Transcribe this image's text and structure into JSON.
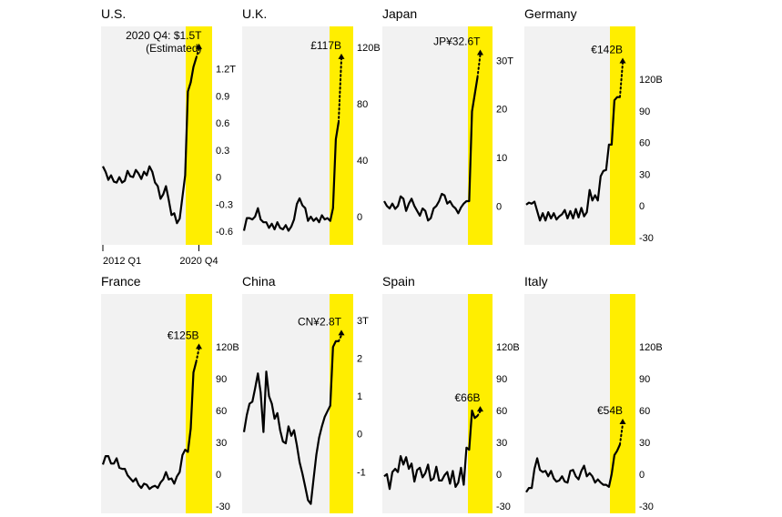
{
  "colors": {
    "panel_bg": "#f2f2f2",
    "highlight": "#ffee00",
    "line": "#000000"
  },
  "chart_data": [
    {
      "type": "line",
      "title": "U.S.",
      "x": [
        "2012 Q1",
        "2012 Q2",
        "2012 Q3",
        "2012 Q4",
        "2013 Q1",
        "2013 Q2",
        "2013 Q3",
        "2013 Q4",
        "2014 Q1",
        "2014 Q2",
        "2014 Q3",
        "2014 Q4",
        "2015 Q1",
        "2015 Q2",
        "2015 Q3",
        "2015 Q4",
        "2016 Q1",
        "2016 Q2",
        "2016 Q3",
        "2016 Q4",
        "2017 Q1",
        "2017 Q2",
        "2017 Q3",
        "2017 Q4",
        "2018 Q1",
        "2018 Q2",
        "2018 Q3",
        "2018 Q4",
        "2019 Q1",
        "2019 Q2",
        "2019 Q3",
        "2019 Q4",
        "2020 Q1",
        "2020 Q2",
        "2020 Q3"
      ],
      "values": [
        0.12,
        0.06,
        -0.03,
        0.02,
        -0.05,
        -0.06,
        0.0,
        -0.06,
        -0.04,
        0.07,
        0.01,
        0.0,
        0.08,
        0.04,
        -0.02,
        0.06,
        0.02,
        0.12,
        0.06,
        -0.06,
        -0.1,
        -0.24,
        -0.19,
        -0.1,
        -0.25,
        -0.42,
        -0.4,
        -0.51,
        -0.46,
        -0.22,
        0.02,
        0.95,
        1.05,
        1.22,
        1.32
      ],
      "estimate": {
        "label": "2020 Q4: $1.5T",
        "label2": "(Estimated)",
        "value": 1.5
      },
      "yticks": [
        "1.2T",
        "0.9",
        "0.6",
        "0.3",
        "0",
        "-0.3",
        "-0.6"
      ],
      "ytick_values": [
        1.2,
        0.9,
        0.6,
        0.3,
        0,
        -0.3,
        -0.6
      ],
      "ylim": [
        -0.75,
        1.67
      ],
      "xticks": [
        "2012 Q1",
        "2020 Q4"
      ]
    },
    {
      "type": "line",
      "title": "U.K.",
      "x": [
        "2012 Q1",
        "2012 Q2",
        "2012 Q3",
        "2012 Q4",
        "2013 Q1",
        "2013 Q2",
        "2013 Q3",
        "2013 Q4",
        "2014 Q1",
        "2014 Q2",
        "2014 Q3",
        "2014 Q4",
        "2015 Q1",
        "2015 Q2",
        "2015 Q3",
        "2015 Q4",
        "2016 Q1",
        "2016 Q2",
        "2016 Q3",
        "2016 Q4",
        "2017 Q1",
        "2017 Q2",
        "2017 Q3",
        "2017 Q4",
        "2018 Q1",
        "2018 Q2",
        "2018 Q3",
        "2018 Q4",
        "2019 Q1",
        "2019 Q2",
        "2019 Q3",
        "2019 Q4",
        "2020 Q1",
        "2020 Q2",
        "2020 Q3"
      ],
      "values": [
        -10,
        -1,
        -1,
        -2,
        0,
        6,
        -2,
        -4,
        -4,
        -8,
        -5,
        -9,
        -4,
        -8,
        -9,
        -6,
        -10,
        -7,
        -2,
        9,
        13,
        8,
        6,
        -3,
        0,
        -3,
        -1,
        -4,
        1,
        -2,
        -1,
        -3,
        6,
        55,
        67
      ],
      "estimate": {
        "label": "£117B",
        "value": 117
      },
      "yticks": [
        "120B",
        "80",
        "40",
        "0"
      ],
      "ytick_values": [
        120,
        80,
        40,
        0
      ],
      "ylim": [
        -20,
        135
      ]
    },
    {
      "type": "line",
      "title": "Japan",
      "x": [
        "2012 Q1",
        "2012 Q2",
        "2012 Q3",
        "2012 Q4",
        "2013 Q1",
        "2013 Q2",
        "2013 Q3",
        "2013 Q4",
        "2014 Q1",
        "2014 Q2",
        "2014 Q3",
        "2014 Q4",
        "2015 Q1",
        "2015 Q2",
        "2015 Q3",
        "2015 Q4",
        "2016 Q1",
        "2016 Q2",
        "2016 Q3",
        "2016 Q4",
        "2017 Q1",
        "2017 Q2",
        "2017 Q3",
        "2017 Q4",
        "2018 Q1",
        "2018 Q2",
        "2018 Q3",
        "2018 Q4",
        "2019 Q1",
        "2019 Q2",
        "2019 Q3",
        "2019 Q4",
        "2020 Q1",
        "2020 Q2",
        "2020 Q3"
      ],
      "values": [
        1,
        0,
        -0.5,
        0.5,
        -0.6,
        0,
        2,
        1.5,
        -1,
        0.5,
        1.5,
        0,
        -1,
        -2,
        -0.5,
        -1,
        -3,
        -2.5,
        -0.5,
        0,
        1,
        2.5,
        2.2,
        0.5,
        1,
        0,
        -0.5,
        -1.5,
        -0.3,
        0.5,
        1,
        1,
        19.5,
        23,
        26.5
      ],
      "estimate": {
        "label": "JP¥32.6T",
        "value": 32.6
      },
      "yticks": [
        "30T",
        "20",
        "10",
        "0"
      ],
      "ytick_values": [
        30,
        20,
        10,
        0
      ],
      "ylim": [
        -8,
        37
      ]
    },
    {
      "type": "line",
      "title": "Germany",
      "x": [
        "2012 Q1",
        "2012 Q2",
        "2012 Q3",
        "2012 Q4",
        "2013 Q1",
        "2013 Q2",
        "2013 Q3",
        "2013 Q4",
        "2014 Q1",
        "2014 Q2",
        "2014 Q3",
        "2014 Q4",
        "2015 Q1",
        "2015 Q2",
        "2015 Q3",
        "2015 Q4",
        "2016 Q1",
        "2016 Q2",
        "2016 Q3",
        "2016 Q4",
        "2017 Q1",
        "2017 Q2",
        "2017 Q3",
        "2017 Q4",
        "2018 Q1",
        "2018 Q2",
        "2018 Q3",
        "2018 Q4",
        "2019 Q1",
        "2019 Q2",
        "2019 Q3",
        "2019 Q4",
        "2020 Q1",
        "2020 Q2",
        "2020 Q3"
      ],
      "values": [
        1,
        3,
        2,
        4,
        -5,
        -14,
        -7,
        -14,
        -6,
        -12,
        -7,
        -13,
        -10,
        -8,
        -4,
        -12,
        -5,
        -12,
        -3,
        -11,
        -2,
        -10,
        -6,
        15,
        5,
        10,
        5,
        28,
        33,
        34,
        58,
        58,
        100,
        103,
        103
      ],
      "estimate": {
        "label": "€142B",
        "value": 142
      },
      "yticks": [
        "120B",
        "90",
        "60",
        "30",
        "0",
        "-30"
      ],
      "ytick_values": [
        120,
        90,
        60,
        30,
        0,
        -30
      ],
      "ylim": [
        -37,
        170
      ]
    },
    {
      "type": "line",
      "title": "France",
      "x": [
        "2012 Q1",
        "2012 Q2",
        "2012 Q3",
        "2012 Q4",
        "2013 Q1",
        "2013 Q2",
        "2013 Q3",
        "2013 Q4",
        "2014 Q1",
        "2014 Q2",
        "2014 Q3",
        "2014 Q4",
        "2015 Q1",
        "2015 Q2",
        "2015 Q3",
        "2015 Q4",
        "2016 Q1",
        "2016 Q2",
        "2016 Q3",
        "2016 Q4",
        "2017 Q1",
        "2017 Q2",
        "2017 Q3",
        "2017 Q4",
        "2018 Q1",
        "2018 Q2",
        "2018 Q3",
        "2018 Q4",
        "2019 Q1",
        "2019 Q2",
        "2019 Q3",
        "2019 Q4",
        "2020 Q1",
        "2020 Q2",
        "2020 Q3"
      ],
      "values": [
        9,
        17,
        17,
        10,
        10,
        15,
        6,
        5,
        5,
        -1,
        -4,
        -7,
        -4,
        -10,
        -13,
        -9,
        -10,
        -14,
        -12,
        -11,
        -13,
        -8,
        -5,
        2,
        -5,
        -4,
        -9,
        -2,
        2,
        18,
        23,
        21,
        43,
        96,
        106
      ],
      "estimate": {
        "label": "€125B",
        "value": 125
      },
      "yticks": [
        "120B",
        "90",
        "60",
        "30",
        "0",
        "-30"
      ],
      "ytick_values": [
        120,
        90,
        60,
        30,
        0,
        -30
      ],
      "ylim": [
        -37,
        170
      ]
    },
    {
      "type": "line",
      "title": "China",
      "x": [
        "2012 Q1",
        "2012 Q2",
        "2012 Q3",
        "2012 Q4",
        "2013 Q1",
        "2013 Q2",
        "2013 Q3",
        "2013 Q4",
        "2014 Q1",
        "2014 Q2",
        "2014 Q3",
        "2014 Q4",
        "2015 Q1",
        "2015 Q2",
        "2015 Q3",
        "2015 Q4",
        "2016 Q1",
        "2016 Q2",
        "2016 Q3",
        "2016 Q4",
        "2017 Q1",
        "2017 Q2",
        "2017 Q3",
        "2017 Q4",
        "2018 Q1",
        "2018 Q2",
        "2018 Q3",
        "2018 Q4",
        "2019 Q1",
        "2019 Q2",
        "2019 Q3",
        "2019 Q4",
        "2020 Q1",
        "2020 Q2",
        "2020 Q3"
      ],
      "values": [
        0.05,
        0.5,
        0.8,
        0.85,
        1.2,
        1.6,
        1.1,
        0.05,
        1.65,
        1.0,
        0.8,
        0.4,
        0.55,
        0.1,
        -0.2,
        -0.25,
        0.2,
        -0.05,
        0.1,
        -0.3,
        -0.75,
        -1.05,
        -1.4,
        -1.75,
        -1.85,
        -1.2,
        -0.55,
        -0.1,
        0.2,
        0.45,
        0.6,
        0.75,
        2.3,
        2.45,
        2.45
      ],
      "estimate": {
        "label": "CN¥2.8T",
        "value": 2.8
      },
      "yticks": [
        "3T",
        "2",
        "1",
        "0",
        "-1"
      ],
      "ytick_values": [
        3,
        2,
        1,
        0,
        -1
      ],
      "ylim": [
        -2.1,
        3.7
      ]
    },
    {
      "type": "line",
      "title": "Spain",
      "x": [
        "2012 Q1",
        "2012 Q2",
        "2012 Q3",
        "2012 Q4",
        "2013 Q1",
        "2013 Q2",
        "2013 Q3",
        "2013 Q4",
        "2014 Q1",
        "2014 Q2",
        "2014 Q3",
        "2014 Q4",
        "2015 Q1",
        "2015 Q2",
        "2015 Q3",
        "2015 Q4",
        "2016 Q1",
        "2016 Q2",
        "2016 Q3",
        "2016 Q4",
        "2017 Q1",
        "2017 Q2",
        "2017 Q3",
        "2017 Q4",
        "2018 Q1",
        "2018 Q2",
        "2018 Q3",
        "2018 Q4",
        "2019 Q1",
        "2019 Q2",
        "2019 Q3",
        "2019 Q4",
        "2020 Q1",
        "2020 Q2",
        "2020 Q3"
      ],
      "values": [
        -2,
        0,
        -14,
        2,
        5,
        2,
        17,
        9,
        16,
        5,
        10,
        -7,
        4,
        6,
        -3,
        1,
        9,
        -6,
        -4,
        7,
        -6,
        -6,
        -1,
        2,
        -9,
        3,
        -12,
        -8,
        6,
        -10,
        25,
        23,
        60,
        53,
        55
      ],
      "estimate": {
        "label": "€66B",
        "value": 66
      },
      "yticks": [
        "120B",
        "90",
        "60",
        "30",
        "0",
        "-30"
      ],
      "ytick_values": [
        120,
        90,
        60,
        30,
        0,
        -30
      ],
      "ylim": [
        -37,
        170
      ]
    },
    {
      "type": "line",
      "title": "Italy",
      "x": [
        "2012 Q1",
        "2012 Q2",
        "2012 Q3",
        "2012 Q4",
        "2013 Q1",
        "2013 Q2",
        "2013 Q3",
        "2013 Q4",
        "2014 Q1",
        "2014 Q2",
        "2014 Q3",
        "2014 Q4",
        "2015 Q1",
        "2015 Q2",
        "2015 Q3",
        "2015 Q4",
        "2016 Q1",
        "2016 Q2",
        "2016 Q3",
        "2016 Q4",
        "2017 Q1",
        "2017 Q2",
        "2017 Q3",
        "2017 Q4",
        "2018 Q1",
        "2018 Q2",
        "2018 Q3",
        "2018 Q4",
        "2019 Q1",
        "2019 Q2",
        "2019 Q3",
        "2019 Q4",
        "2020 Q1",
        "2020 Q2",
        "2020 Q3"
      ],
      "values": [
        -17,
        -13,
        -13,
        5,
        15,
        4,
        2,
        3,
        -2,
        3,
        -4,
        -7,
        -6,
        -2,
        -7,
        -8,
        3,
        4,
        -2,
        -5,
        3,
        8,
        -2,
        1,
        -2,
        -8,
        -5,
        -8,
        -10,
        -10,
        -12,
        0,
        18,
        22,
        28
      ],
      "estimate": {
        "label": "€54B",
        "value": 54
      },
      "yticks": [
        "120B",
        "90",
        "60",
        "30",
        "0",
        "-30"
      ],
      "ytick_values": [
        120,
        90,
        60,
        30,
        0,
        -30
      ],
      "ylim": [
        -37,
        170
      ]
    }
  ]
}
